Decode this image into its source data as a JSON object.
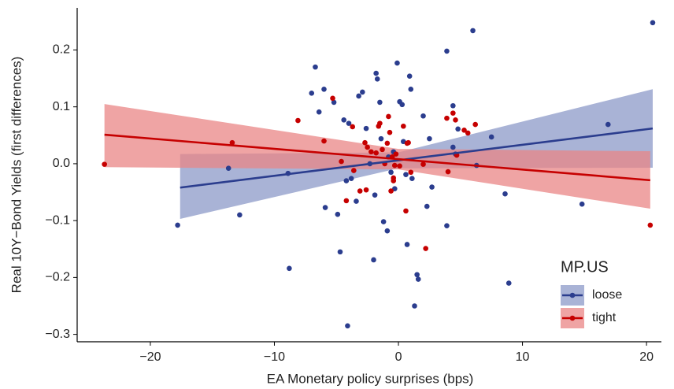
{
  "chart_data": {
    "type": "scatter",
    "x_label": "EA Monetary policy surprises (bps)",
    "y_label": "Real 10Y−Bond Yields (first differences)",
    "xlim": [
      -25.9,
      21.2
    ],
    "ylim": [
      -0.313,
      0.274
    ],
    "xticks": [
      {
        "value": -20,
        "label": "−20"
      },
      {
        "value": -10,
        "label": "−10"
      },
      0,
      10,
      20
    ],
    "yticks": [
      {
        "value": -0.3,
        "label": "−0.3"
      },
      {
        "value": -0.2,
        "label": "−0.2"
      },
      {
        "value": -0.1,
        "label": "−0.1"
      },
      {
        "value": 0,
        "label": "0.0"
      },
      0.1,
      0.2
    ],
    "legend_title": "MP.US",
    "legend_position": "bottom-right",
    "series": [
      {
        "name": "loose",
        "color": "#2b3d8e",
        "band_color": "#8c99c8",
        "x": [
          -17.8,
          -13.7,
          -12.8,
          -8.9,
          -8.8,
          -6.7,
          -6.0,
          -6.4,
          -5.9,
          -7.0,
          -5.2,
          -4.9,
          -4.7,
          -4.4,
          -4.1,
          -4.0,
          -3.8,
          -4.2,
          -3.4,
          -3.2,
          -2.9,
          -2.6,
          -2.3,
          -1.9,
          -1.8,
          -1.7,
          -2.0,
          -1.5,
          -1.4,
          -1.2,
          -0.9,
          -0.8,
          -0.6,
          -0.4,
          -0.3,
          -0.1,
          0.1,
          0.3,
          0.4,
          0.6,
          0.7,
          0.9,
          1.0,
          1.1,
          1.3,
          1.5,
          1.6,
          2.0,
          2.3,
          2.5,
          2.7,
          3.9,
          3.9,
          4.4,
          4.4,
          4.6,
          4.8,
          6.0,
          6.3,
          7.5,
          8.6,
          8.9,
          14.8,
          16.9,
          20.5
        ],
        "values": [
          -0.108,
          -0.008,
          -0.09,
          -0.017,
          -0.184,
          0.17,
          0.131,
          0.091,
          -0.077,
          0.124,
          0.108,
          -0.089,
          -0.155,
          0.077,
          -0.285,
          0.071,
          -0.026,
          -0.03,
          -0.066,
          0.119,
          0.126,
          0.062,
          0.0,
          -0.055,
          0.159,
          0.149,
          -0.169,
          0.108,
          0.044,
          -0.102,
          -0.118,
          0.012,
          -0.015,
          0.021,
          -0.044,
          0.177,
          0.109,
          0.104,
          0.039,
          -0.019,
          -0.142,
          0.154,
          0.131,
          -0.026,
          -0.25,
          -0.195,
          -0.203,
          0.084,
          -0.075,
          0.044,
          -0.041,
          -0.109,
          0.198,
          0.102,
          0.029,
          0.017,
          0.061,
          0.234,
          -0.003,
          0.047,
          -0.053,
          -0.21,
          -0.071,
          0.069,
          0.248
        ],
        "fit_x": [
          -17.6,
          0,
          20.5
        ],
        "fit_y": [
          -0.042,
          0.006,
          0.062
        ],
        "ci_lower": [
          -0.097,
          -0.008,
          -0.007
        ],
        "ci_upper": [
          0.017,
          0.02,
          0.131
        ]
      },
      {
        "name": "tight",
        "color": "#c60000",
        "band_color": "#e98585",
        "x": [
          -23.7,
          -13.4,
          -8.1,
          -6.0,
          -5.3,
          -4.6,
          -4.2,
          -3.7,
          -3.6,
          -3.1,
          -2.7,
          -2.6,
          -2.5,
          -2.2,
          -1.8,
          -1.6,
          -1.5,
          -1.3,
          -1.1,
          -0.9,
          -0.8,
          -0.7,
          -0.6,
          -0.5,
          -0.4,
          -0.4,
          -0.3,
          -0.2,
          0.1,
          0.4,
          0.6,
          0.7,
          0.8,
          1.0,
          2.0,
          2.2,
          3.9,
          4.4,
          4.6,
          4.7,
          4.0,
          5.3,
          5.6,
          6.2,
          20.3
        ],
        "values": [
          -0.001,
          0.037,
          0.076,
          0.04,
          0.115,
          0.004,
          -0.065,
          0.065,
          -0.012,
          -0.048,
          0.037,
          -0.046,
          0.029,
          0.021,
          0.019,
          0.066,
          0.071,
          0.025,
          0.0,
          0.036,
          0.083,
          0.055,
          -0.048,
          0.012,
          -0.025,
          -0.03,
          -0.003,
          0.017,
          -0.004,
          0.066,
          -0.083,
          0.036,
          0.037,
          -0.015,
          -0.001,
          -0.149,
          0.08,
          0.089,
          0.077,
          0.015,
          -0.014,
          0.059,
          0.054,
          0.069,
          -0.108
        ],
        "fit_x": [
          -23.7,
          0,
          20.3
        ],
        "fit_y": [
          0.051,
          0.008,
          -0.029
        ],
        "ci_lower": [
          -0.006,
          -0.01,
          -0.079
        ],
        "ci_upper": [
          0.105,
          0.026,
          0.022
        ]
      }
    ]
  }
}
